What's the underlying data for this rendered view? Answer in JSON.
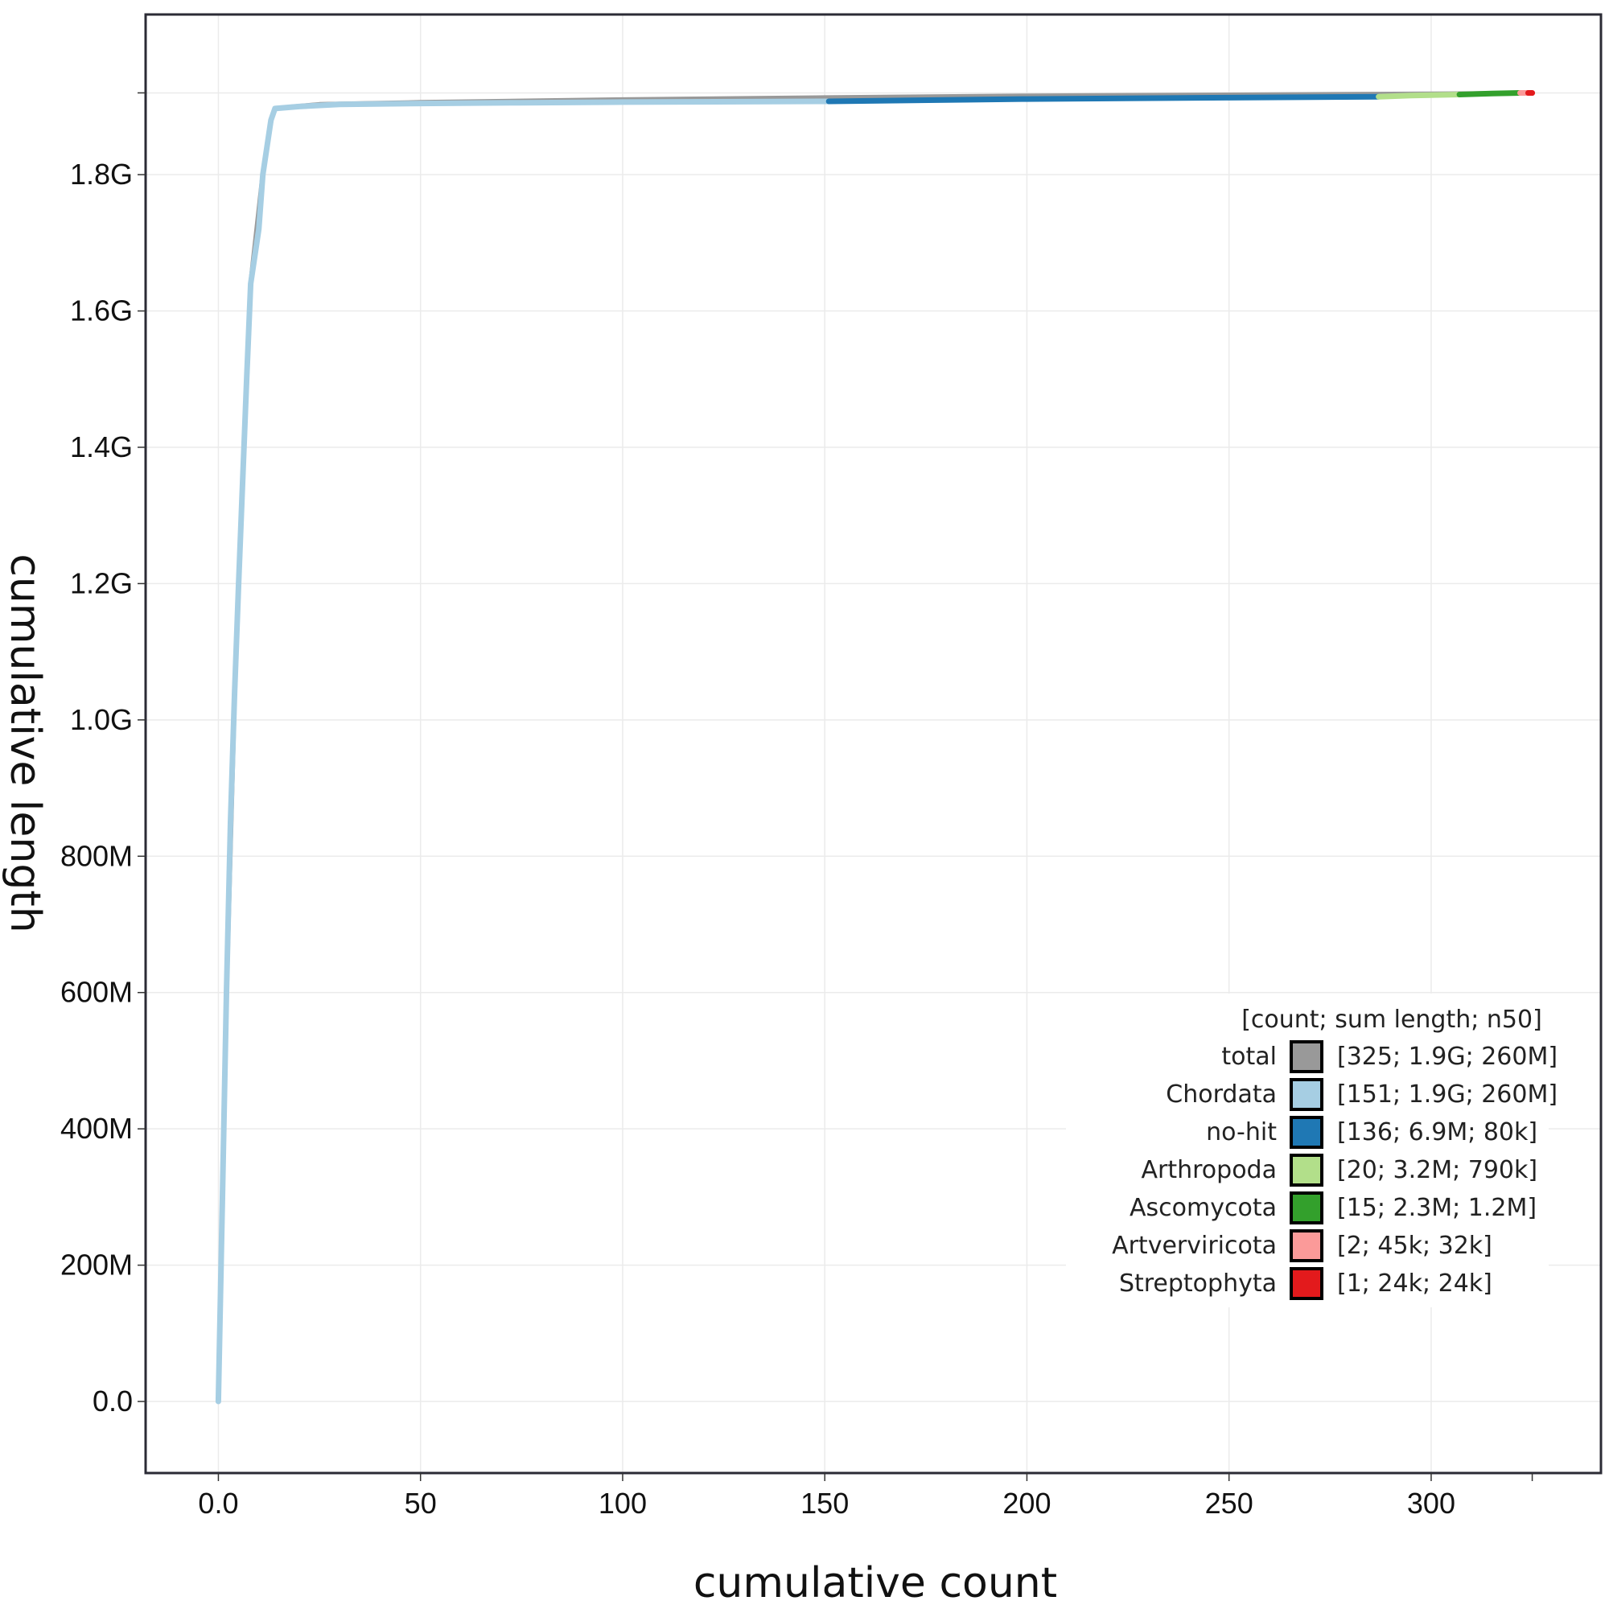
{
  "chart_data": {
    "type": "line",
    "xlabel": "cumulative count",
    "ylabel": "cumulative length",
    "xlim": [
      -18,
      342
    ],
    "ylim": [
      -105000000,
      2035000000
    ],
    "x_ticks": [
      {
        "value": 0,
        "label": "0.0"
      },
      {
        "value": 50,
        "label": "50"
      },
      {
        "value": 100,
        "label": "100"
      },
      {
        "value": 150,
        "label": "150"
      },
      {
        "value": 200,
        "label": "200"
      },
      {
        "value": 250,
        "label": "250"
      },
      {
        "value": 300,
        "label": "300"
      }
    ],
    "y_ticks": [
      {
        "value": 0,
        "label": "0.0"
      },
      {
        "value": 200000000,
        "label": "200M"
      },
      {
        "value": 400000000,
        "label": "400M"
      },
      {
        "value": 600000000,
        "label": "600M"
      },
      {
        "value": 800000000,
        "label": "800M"
      },
      {
        "value": 1000000000,
        "label": "1.0G"
      },
      {
        "value": 1200000000,
        "label": "1.2G"
      },
      {
        "value": 1400000000,
        "label": "1.4G"
      },
      {
        "value": 1600000000,
        "label": "1.6G"
      },
      {
        "value": 1800000000,
        "label": "1.8G"
      }
    ],
    "grid": true,
    "legend_position": "bottom-right",
    "legend": {
      "header": "[count; sum length; n50]",
      "entries": [
        {
          "name": "total",
          "stats": "[325; 1.9G; 260M]",
          "color": "#999999"
        },
        {
          "name": "Chordata",
          "stats": "[151; 1.9G; 260M]",
          "color": "#a6cee3"
        },
        {
          "name": "no-hit",
          "stats": "[136; 6.9M; 80k]",
          "color": "#1f78b4"
        },
        {
          "name": "Arthropoda",
          "stats": "[20; 3.2M; 790k]",
          "color": "#b2df8a"
        },
        {
          "name": "Ascomycota",
          "stats": "[15; 2.3M; 1.2M]",
          "color": "#33a02c"
        },
        {
          "name": "Artverviricota",
          "stats": "[2; 45k; 32k]",
          "color": "#fb9a99"
        },
        {
          "name": "Streptophyta",
          "stats": "[1; 24k; 24k]",
          "color": "#e31a1c"
        }
      ]
    },
    "series": [
      {
        "name": "total",
        "color": "#999999",
        "points": [
          [
            0,
            0
          ],
          [
            2,
            600000000
          ],
          [
            4,
            1040000000
          ],
          [
            6,
            1350000000
          ],
          [
            8,
            1640000000
          ],
          [
            11,
            1800000000
          ],
          [
            13,
            1880000000
          ],
          [
            14,
            1897000000
          ],
          [
            25,
            1903000000
          ],
          [
            50,
            1906000000
          ],
          [
            100,
            1910000000
          ],
          [
            150,
            1913000000
          ],
          [
            200,
            1915500000
          ],
          [
            250,
            1917000000
          ],
          [
            300,
            1918500000
          ],
          [
            325,
            1919500000
          ]
        ]
      },
      {
        "name": "Chordata",
        "color": "#a6cee3",
        "points": [
          [
            0,
            0
          ],
          [
            1,
            300000000
          ],
          [
            2,
            600000000
          ],
          [
            3,
            850000000
          ],
          [
            4,
            1040000000
          ],
          [
            5,
            1200000000
          ],
          [
            6,
            1350000000
          ],
          [
            7,
            1500000000
          ],
          [
            8,
            1640000000
          ],
          [
            10,
            1720000000
          ],
          [
            11,
            1800000000
          ],
          [
            13,
            1880000000
          ],
          [
            14,
            1897000000
          ],
          [
            20,
            1900000000
          ],
          [
            30,
            1903000000
          ],
          [
            50,
            1904500000
          ],
          [
            75,
            1905500000
          ],
          [
            100,
            1906500000
          ],
          [
            151,
            1907500000
          ]
        ]
      },
      {
        "name": "no-hit",
        "color": "#1f78b4",
        "points": [
          [
            151,
            1907500000
          ],
          [
            200,
            1911000000
          ],
          [
            250,
            1913000000
          ],
          [
            287,
            1914400000
          ]
        ]
      },
      {
        "name": "Arthropoda",
        "color": "#b2df8a",
        "points": [
          [
            287,
            1914400000
          ],
          [
            295,
            1916000000
          ],
          [
            307,
            1917600000
          ]
        ]
      },
      {
        "name": "Ascomycota",
        "color": "#33a02c",
        "points": [
          [
            307,
            1917600000
          ],
          [
            315,
            1919000000
          ],
          [
            322,
            1919900000
          ]
        ]
      },
      {
        "name": "Artverviricota",
        "color": "#fb9a99",
        "points": [
          [
            322,
            1919900000
          ],
          [
            324,
            1919950000
          ]
        ]
      },
      {
        "name": "Streptophyta",
        "color": "#e31a1c",
        "points": [
          [
            324,
            1919950000
          ],
          [
            325,
            1919970000
          ]
        ]
      }
    ]
  }
}
